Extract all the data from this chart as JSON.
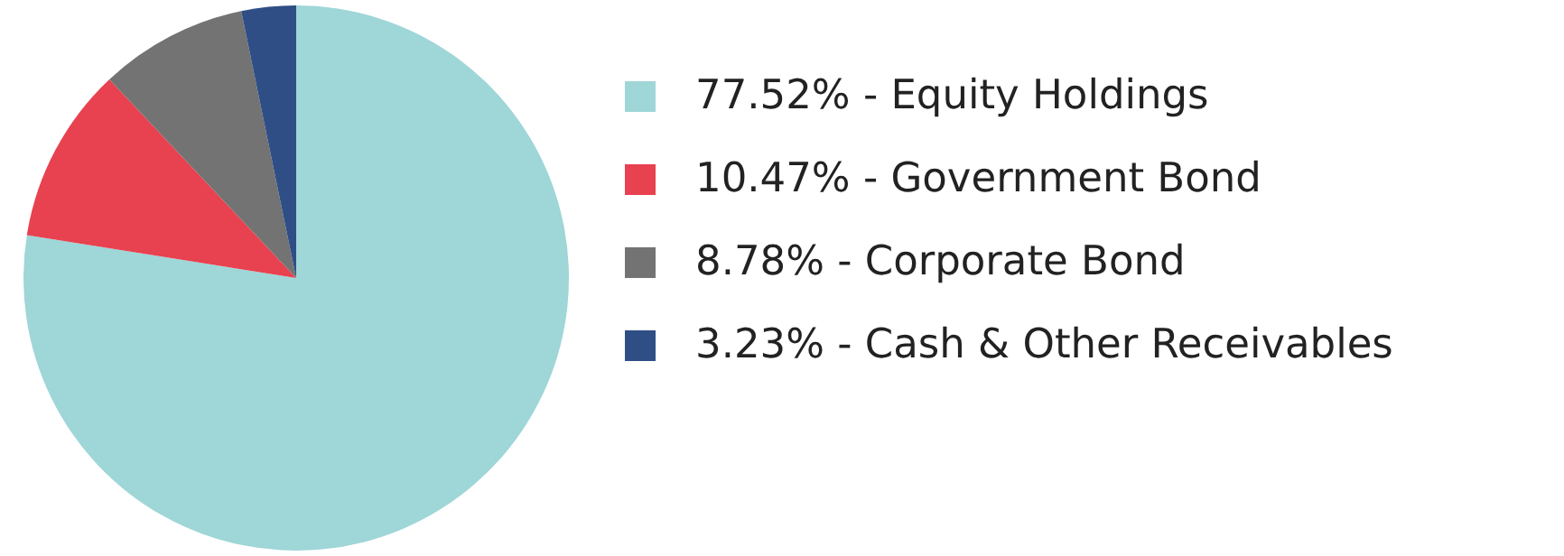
{
  "chart_data": {
    "type": "pie",
    "categories": [
      "77.52% - Equity Holdings",
      "10.47% - Government Bond",
      "8.78% - Corporate Bond",
      "3.23% - Cash & Other Receivables"
    ],
    "values": [
      77.52,
      10.47,
      8.78,
      3.23
    ],
    "colors": [
      "#9fd6d8",
      "#e8414f",
      "#737373",
      "#2f4e86"
    ],
    "legend": "right"
  }
}
